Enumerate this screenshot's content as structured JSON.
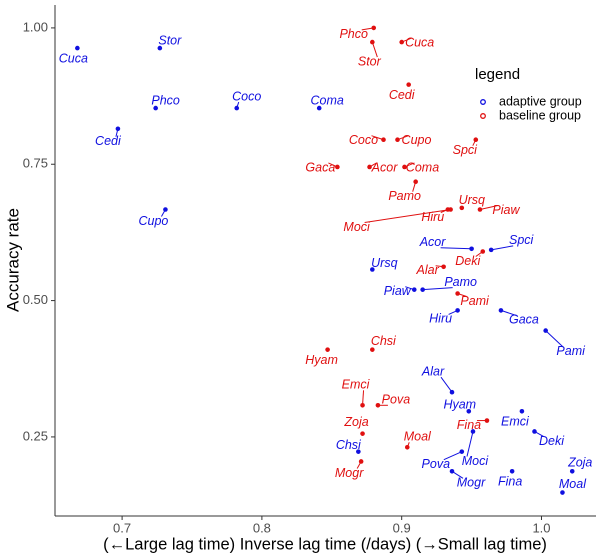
{
  "chart_data": {
    "type": "scatter",
    "xlabel": "(←Large lag time)  Inverse lag time (/days)  (→Small lag time)",
    "ylabel": "Accuracy rate",
    "legend_title": "legend",
    "legend_position": "top-right",
    "xlim": [
      0.652,
      1.039
    ],
    "ylim": [
      0.105,
      1.042
    ],
    "xticks": [
      0.7,
      0.8,
      0.9,
      {
        "value": 1.0,
        "label": "1.0"
      }
    ],
    "yticks": [
      0.25,
      {
        "value": 0.5,
        "label": "0.50"
      },
      0.75,
      {
        "value": 1.0,
        "label": "1.00"
      }
    ],
    "series": [
      {
        "name": "adaptive group",
        "color": "#1010e0",
        "labels": [
          "Cuca",
          "Stor",
          "Phco",
          "Cedi",
          "Coco",
          "Coma",
          "Cupo",
          "Acor",
          "Spci",
          "Ursq",
          "Pamo",
          "Piaw",
          "Hiru",
          "Gaca",
          "Pami",
          "Alar",
          "Hyam",
          "Emci",
          "Deki",
          "Moci",
          "Chsi",
          "Pova",
          "Mogr",
          "Fina",
          "Zoja",
          "Moal"
        ],
        "x": [
          0.668,
          0.727,
          0.724,
          0.697,
          0.782,
          0.841,
          0.731,
          0.95,
          0.964,
          0.879,
          0.915,
          0.909,
          0.94,
          0.971,
          1.003,
          0.936,
          0.948,
          0.986,
          0.995,
          0.951,
          0.869,
          0.943,
          0.936,
          0.979,
          1.022,
          1.015
        ],
        "values": [
          0.963,
          0.963,
          0.853,
          0.815,
          0.853,
          0.853,
          0.667,
          0.595,
          0.593,
          0.557,
          0.52,
          0.52,
          0.482,
          0.482,
          0.445,
          0.332,
          0.297,
          0.297,
          0.26,
          0.26,
          0.223,
          0.223,
          0.187,
          0.187,
          0.187,
          0.148
        ]
      },
      {
        "name": "baseline group",
        "color": "#e01010",
        "labels": [
          "Phco",
          "Stor",
          "Cuca",
          "Cedi",
          "Coco",
          "Cupo",
          "Spci",
          "Gaca",
          "Acor",
          "Coma",
          "Pamo",
          "Ursq",
          "Hiru",
          "Piaw",
          "Moci",
          "Deki",
          "Alar",
          "Pami",
          "Chsi",
          "Hyam",
          "Emci",
          "Pova",
          "Zoja",
          "Fina",
          "Moal",
          "Mogr"
        ],
        "x": [
          0.88,
          0.879,
          0.9,
          0.905,
          0.887,
          0.897,
          0.953,
          0.854,
          0.877,
          0.902,
          0.91,
          0.943,
          0.933,
          0.956,
          0.935,
          0.958,
          0.93,
          0.94,
          0.879,
          0.847,
          0.872,
          0.883,
          0.872,
          0.961,
          0.904,
          0.871
        ],
        "values": [
          1.0,
          0.974,
          0.974,
          0.896,
          0.795,
          0.795,
          0.795,
          0.745,
          0.745,
          0.745,
          0.718,
          0.67,
          0.667,
          0.667,
          0.667,
          0.59,
          0.562,
          0.513,
          0.41,
          0.41,
          0.308,
          0.308,
          0.256,
          0.28,
          0.231,
          0.205
        ]
      }
    ]
  }
}
